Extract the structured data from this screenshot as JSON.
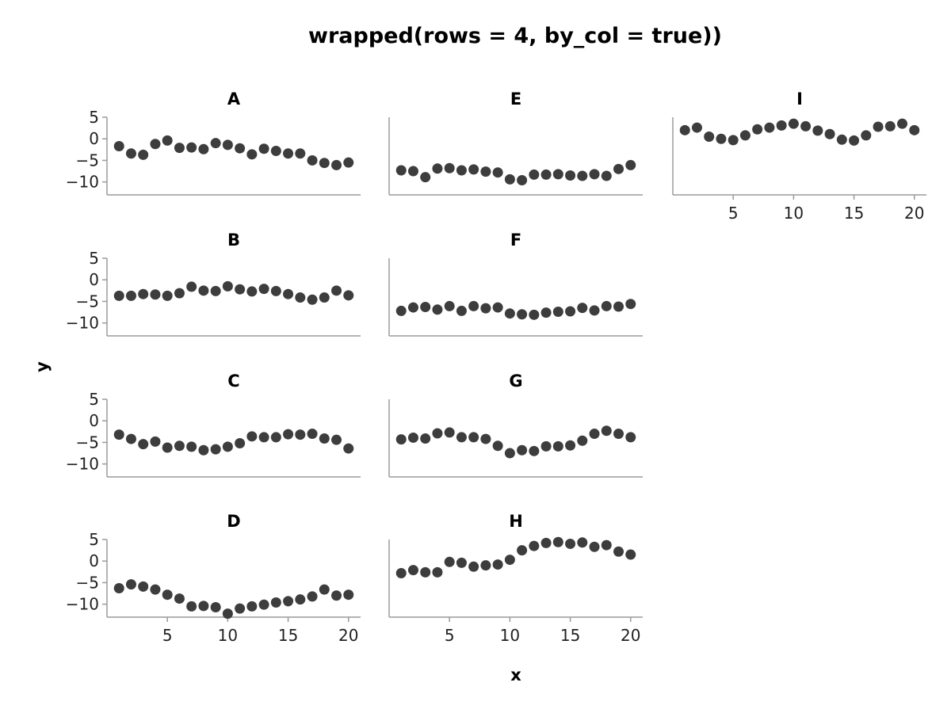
{
  "chart_data": {
    "type": "scatter",
    "title": "wrapped(rows = 4, by_col = true))",
    "xlabel": "x",
    "ylabel": "y",
    "xlim": [
      0,
      21
    ],
    "ylim": [
      -13,
      5
    ],
    "xticks": [
      5,
      10,
      15,
      20
    ],
    "yticks": [
      5,
      0,
      -5,
      -10
    ],
    "grid": false,
    "marker_color": "#3d3d3d",
    "x": [
      1,
      2,
      3,
      4,
      5,
      6,
      7,
      8,
      9,
      10,
      11,
      12,
      13,
      14,
      15,
      16,
      17,
      18,
      19,
      20
    ],
    "panels": [
      {
        "label": "A",
        "y": [
          -1.7,
          -3.4,
          -3.7,
          -1.2,
          -0.4,
          -2.1,
          -2.0,
          -2.4,
          -1.0,
          -1.4,
          -2.2,
          -3.6,
          -2.3,
          -2.8,
          -3.4,
          -3.4,
          -5.0,
          -5.6,
          -6.1,
          -5.5
        ]
      },
      {
        "label": "B",
        "y": [
          -3.7,
          -3.7,
          -3.3,
          -3.4,
          -3.7,
          -3.1,
          -1.6,
          -2.5,
          -2.6,
          -1.5,
          -2.2,
          -2.7,
          -2.1,
          -2.6,
          -3.3,
          -4.1,
          -4.6,
          -4.1,
          -2.5,
          -3.6
        ]
      },
      {
        "label": "C",
        "y": [
          -3.2,
          -4.2,
          -5.4,
          -4.8,
          -6.2,
          -5.8,
          -6.0,
          -6.8,
          -6.6,
          -6.0,
          -5.2,
          -3.6,
          -3.8,
          -3.8,
          -3.1,
          -3.2,
          -3.0,
          -4.1,
          -4.4,
          -6.4
        ]
      },
      {
        "label": "D",
        "y": [
          -6.3,
          -5.4,
          -5.9,
          -6.6,
          -7.8,
          -8.7,
          -10.5,
          -10.4,
          -10.7,
          -12.2,
          -11.0,
          -10.5,
          -10.1,
          -9.6,
          -9.3,
          -8.9,
          -8.2,
          -6.6,
          -8.0,
          -7.8
        ]
      },
      {
        "label": "E",
        "y": [
          -7.3,
          -7.5,
          -8.9,
          -6.9,
          -6.8,
          -7.3,
          -7.1,
          -7.6,
          -7.8,
          -9.4,
          -9.6,
          -8.3,
          -8.3,
          -8.2,
          -8.5,
          -8.6,
          -8.2,
          -8.6,
          -7.0,
          -6.1
        ]
      },
      {
        "label": "F",
        "y": [
          -7.2,
          -6.4,
          -6.3,
          -6.9,
          -6.1,
          -7.2,
          -6.1,
          -6.6,
          -6.4,
          -7.8,
          -8.0,
          -8.1,
          -7.6,
          -7.4,
          -7.3,
          -6.5,
          -7.1,
          -6.1,
          -6.2,
          -5.6
        ]
      },
      {
        "label": "G",
        "y": [
          -4.3,
          -3.9,
          -4.1,
          -2.9,
          -2.7,
          -3.8,
          -3.8,
          -4.2,
          -5.8,
          -7.5,
          -6.8,
          -7.0,
          -5.9,
          -5.9,
          -5.7,
          -4.6,
          -3.0,
          -2.3,
          -3.0,
          -3.8
        ]
      },
      {
        "label": "H",
        "y": [
          -2.8,
          -2.1,
          -2.6,
          -2.6,
          -0.2,
          -0.4,
          -1.3,
          -1.0,
          -0.8,
          0.3,
          2.5,
          3.5,
          4.2,
          4.4,
          4.0,
          4.3,
          3.3,
          3.7,
          2.2,
          1.5
        ]
      },
      {
        "label": "I",
        "y": [
          2.0,
          2.6,
          0.5,
          0.0,
          -0.3,
          0.8,
          2.2,
          2.6,
          3.1,
          3.5,
          2.9,
          1.9,
          1.1,
          -0.2,
          -0.4,
          0.8,
          2.8,
          2.9,
          3.5,
          2.0
        ]
      }
    ]
  }
}
